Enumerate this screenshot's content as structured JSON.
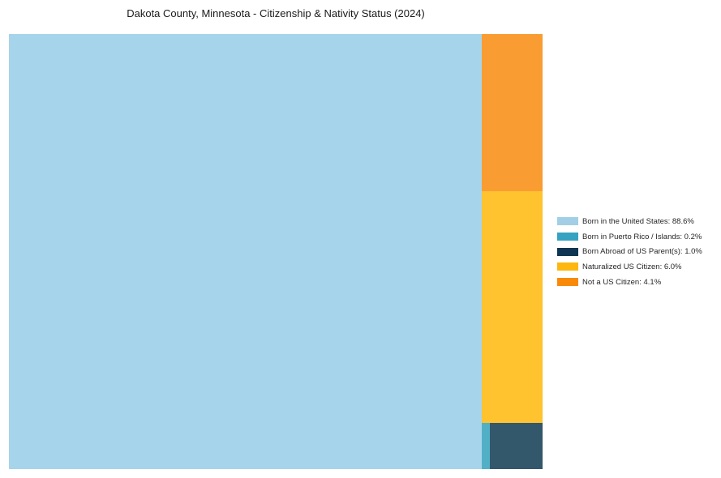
{
  "title": "Dakota County, Minnesota - Citizenship & Nativity Status (2024)",
  "chart_data": {
    "type": "treemap",
    "title": "Dakota County, Minnesota - Citizenship & Nativity Status (2024)",
    "unit": "percent",
    "legend_position": "right",
    "series": [
      {
        "label": "Born in the United States",
        "value": 88.6,
        "color": "#A6D4EA",
        "rect": {
          "x": 0.0,
          "y": 0.0,
          "w": 0.886,
          "h": 1.0
        }
      },
      {
        "label": "Born in Puerto Rico / Islands",
        "value": 0.2,
        "color": "#52B0C6",
        "rect": {
          "x": 0.886,
          "y": 0.894,
          "w": 0.0152,
          "h": 0.106
        }
      },
      {
        "label": "Born Abroad of US Parent(s)",
        "value": 1.0,
        "color": "#33576B",
        "rect": {
          "x": 0.9012,
          "y": 0.894,
          "w": 0.0988,
          "h": 0.106
        }
      },
      {
        "label": "Naturalized US Citizen",
        "value": 6.0,
        "color": "#FEC32F",
        "rect": {
          "x": 0.886,
          "y": 0.362,
          "w": 0.114,
          "h": 0.532
        }
      },
      {
        "label": "Not a US Citizen",
        "value": 4.1,
        "color": "#F99D33",
        "rect": {
          "x": 0.886,
          "y": 0.0,
          "w": 0.114,
          "h": 0.362
        }
      }
    ]
  },
  "legend": {
    "items": [
      {
        "text": "Born in the United States: 88.6%",
        "swatch_color": "#A2CFE5"
      },
      {
        "text": "Born in Puerto Rico / Islands: 0.2%",
        "swatch_color": "#35A2C1"
      },
      {
        "text": "Born Abroad of US Parent(s): 1.0%",
        "swatch_color": "#0F3552"
      },
      {
        "text": "Naturalized US Citizen: 6.0%",
        "swatch_color": "#FEB70F"
      },
      {
        "text": "Not a US Citizen: 4.1%",
        "swatch_color": "#F98908"
      }
    ]
  }
}
